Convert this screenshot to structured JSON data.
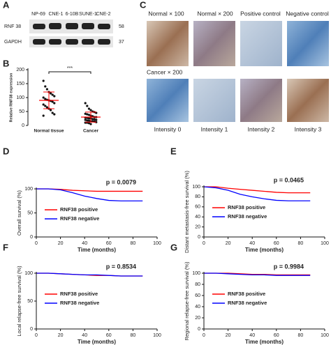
{
  "panels": {
    "A": {
      "label": "A",
      "lanes": [
        "NP-69",
        "CNE-1",
        "6-10B",
        "SUNE-1",
        "CNE-2"
      ],
      "rows": [
        "RNF 38",
        "GAPDH"
      ],
      "sizes": [
        "58",
        "37"
      ]
    },
    "C": {
      "label": "C",
      "top": [
        "Normal × 100",
        "Normal × 200",
        "Positive control",
        "Negative control"
      ],
      "middle": "Cancer × 200",
      "bottom": [
        "Intensity 0",
        "Intensity 1",
        "Intensity 2",
        "Intensity 3"
      ]
    }
  },
  "chart_data": [
    {
      "type": "strip",
      "label": "B",
      "ylabel": "Relative RNF38 expression",
      "annotation": "***",
      "categories": [
        "Normal tissue",
        "Cancer"
      ],
      "groups": [
        [
          160,
          140,
          130,
          120,
          115,
          110,
          105,
          100,
          95,
          92,
          90,
          88,
          85,
          80,
          75,
          70,
          65,
          60,
          55,
          45,
          40,
          35
        ],
        [
          80,
          70,
          60,
          55,
          50,
          48,
          45,
          42,
          40,
          38,
          35,
          33,
          30,
          30,
          28,
          27,
          25,
          25,
          23,
          22,
          20,
          20,
          18,
          17,
          15,
          15,
          14,
          12,
          10,
          10,
          8,
          5
        ]
      ],
      "mean": [
        90,
        30
      ],
      "sd": [
        30,
        18
      ],
      "color": "#ff0000",
      "ylim": [
        0,
        200
      ],
      "yticks": [
        0,
        50,
        100,
        150,
        200
      ]
    },
    {
      "type": "line",
      "label": "D",
      "ylabel": "Overall survival (%)",
      "xlabel": "Time (months)",
      "annotation": "p = 0.0079",
      "x": [
        0,
        10,
        20,
        30,
        40,
        50,
        60,
        70,
        80,
        88
      ],
      "series": [
        {
          "name": "RNF38 positive",
          "color": "#ff0000",
          "values": [
            100,
            100,
            99,
            97,
            96,
            95,
            95,
            95,
            95,
            95
          ]
        },
        {
          "name": "RNF38 negative",
          "color": "#0000ff",
          "values": [
            100,
            100,
            98,
            92,
            85,
            80,
            76,
            75,
            75,
            75
          ]
        }
      ],
      "xlim": [
        0,
        100
      ],
      "xticks": [
        0,
        20,
        40,
        60,
        80,
        100
      ],
      "ylim": [
        0,
        100
      ],
      "yticks": [
        0,
        50,
        100
      ]
    },
    {
      "type": "line",
      "label": "E",
      "ylabel": "Distant metastasis-free survival (%)",
      "xlabel": "Time (months)",
      "annotation": "p = 0.0465",
      "x": [
        0,
        10,
        20,
        30,
        40,
        50,
        60,
        70,
        80,
        88
      ],
      "series": [
        {
          "name": "RNF38 positive",
          "color": "#ff0000",
          "values": [
            100,
            100,
            97,
            95,
            93,
            91,
            89,
            88,
            88,
            88
          ]
        },
        {
          "name": "RNF38 negative",
          "color": "#0000ff",
          "values": [
            100,
            98,
            93,
            85,
            80,
            76,
            73,
            72,
            72,
            72
          ]
        }
      ],
      "xlim": [
        0,
        100
      ],
      "xticks": [
        0,
        20,
        40,
        60,
        80,
        100
      ],
      "ylim": [
        0,
        100
      ],
      "yticks": [
        0,
        20,
        40,
        60,
        80,
        100
      ]
    },
    {
      "type": "line",
      "label": "F",
      "ylabel": "Local relapse-free survival (%)",
      "xlabel": "Time (months)",
      "annotation": "p = 0.8534",
      "x": [
        0,
        10,
        20,
        30,
        40,
        50,
        60,
        70,
        80,
        88
      ],
      "series": [
        {
          "name": "RNF38 positive",
          "color": "#ff0000",
          "values": [
            100,
            100,
            99,
            98,
            97,
            96,
            96,
            95,
            95,
            95
          ]
        },
        {
          "name": "RNF38 negative",
          "color": "#0000ff",
          "values": [
            100,
            100,
            99,
            98,
            97,
            97,
            96,
            95,
            95,
            95
          ]
        }
      ],
      "xlim": [
        0,
        100
      ],
      "xticks": [
        0,
        20,
        40,
        60,
        80,
        100
      ],
      "ylim": [
        0,
        100
      ],
      "yticks": [
        0,
        50,
        100
      ]
    },
    {
      "type": "line",
      "label": "G",
      "ylabel": "Regional relapse-free survival (%)",
      "xlabel": "Time (months)",
      "annotation": "p = 0.9984",
      "x": [
        0,
        10,
        20,
        30,
        40,
        50,
        60,
        70,
        80,
        88
      ],
      "series": [
        {
          "name": "RNF38 positive",
          "color": "#ff0000",
          "values": [
            100,
            100,
            100,
            99,
            98,
            98,
            97,
            97,
            97,
            97
          ]
        },
        {
          "name": "RNF38 negative",
          "color": "#0000ff",
          "values": [
            100,
            100,
            99,
            98,
            97,
            97,
            96,
            96,
            96,
            96
          ]
        }
      ],
      "xlim": [
        0,
        100
      ],
      "xticks": [
        0,
        20,
        40,
        60,
        80,
        100
      ],
      "ylim": [
        0,
        100
      ],
      "yticks": [
        0,
        20,
        40,
        60,
        80,
        100
      ]
    }
  ]
}
